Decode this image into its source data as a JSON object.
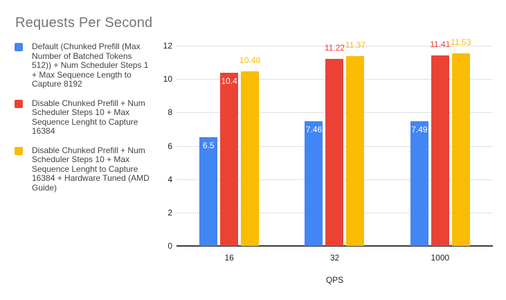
{
  "chart_data": {
    "type": "bar",
    "title": "Requests Per Second",
    "xlabel": "QPS",
    "ylabel": "",
    "categories": [
      "16",
      "32",
      "1000"
    ],
    "series": [
      {
        "name": "Default (Chunked Prefill (Max Number of Batched Tokens 512)) + Num Scheduler Steps 1 + Max Sequence Length to Capture 8192",
        "color": "#4285F4",
        "values": [
          6.5,
          7.46,
          7.49
        ],
        "labels": [
          "6.5",
          "7.46",
          "7.49"
        ],
        "label_placement": [
          "inside",
          "inside",
          "inside"
        ]
      },
      {
        "name": "Disable Chunked Prefill + Num Scheduler Steps 10 + Max Sequence Lenght to Capture 16384",
        "color": "#EA4335",
        "values": [
          10.4,
          11.22,
          11.41
        ],
        "labels": [
          "10.4",
          "11.22",
          "11.41"
        ],
        "label_placement": [
          "inside",
          "above",
          "above"
        ]
      },
      {
        "name": "Disable Chunked Prefill + Num Scheduler Steps 10 + Max Sequence Lenght to Capture 16384 + Hardware Tuned (AMD Guide)",
        "color": "#FBBC04",
        "values": [
          10.48,
          11.37,
          11.53
        ],
        "labels": [
          "10.48",
          "11.37",
          "11.53"
        ],
        "label_placement": [
          "above",
          "above",
          "above"
        ]
      }
    ],
    "ylim": [
      0,
      12
    ],
    "yticks": [
      0,
      2,
      4,
      6,
      8,
      10,
      12
    ],
    "grid": true,
    "legend_position": "left",
    "inside_label_color": "#ffffff",
    "grid_color": "#e0e0e0",
    "axis_line_color": "#3a3a3a",
    "title_color": "#757575",
    "text_color": "#212121",
    "legend_text_color": "#424242"
  }
}
